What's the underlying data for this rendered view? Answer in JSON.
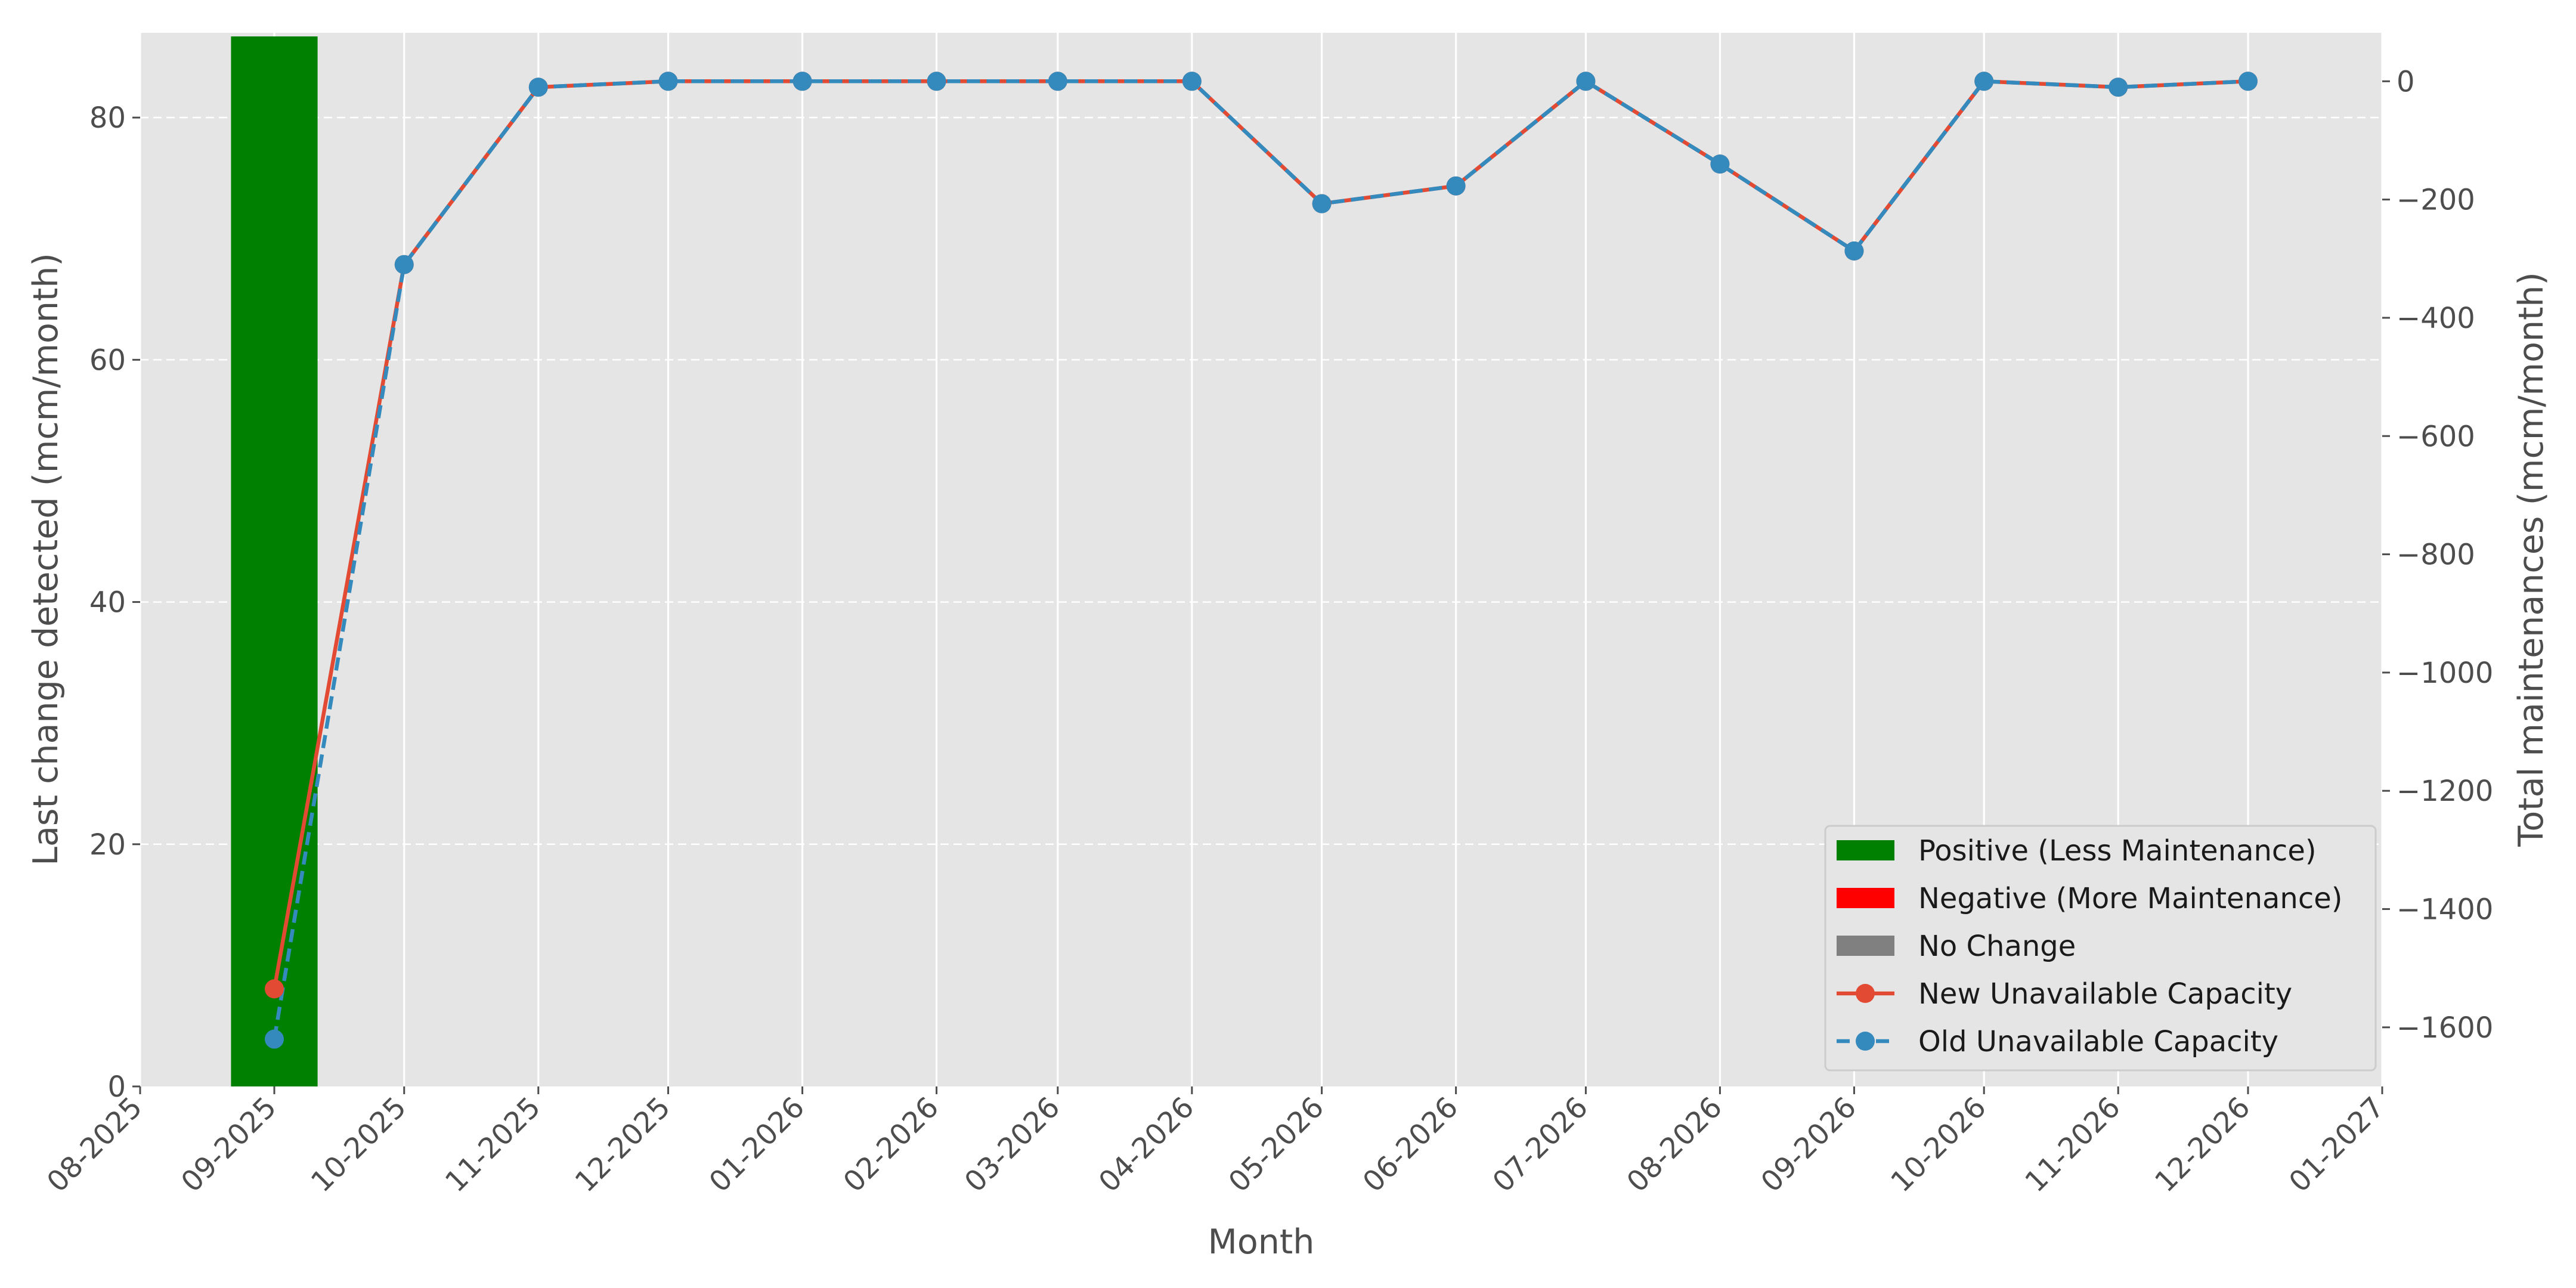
{
  "chart_data": {
    "type": "bar+line",
    "title": "",
    "xlabel": "Month",
    "ylabel_left": "Last change detected (mcm/month)",
    "ylabel_right": "Total maintenances (mcm/month)",
    "x_ticks": [
      "08-2025",
      "09-2025",
      "10-2025",
      "11-2025",
      "12-2025",
      "01-2026",
      "02-2026",
      "03-2026",
      "04-2026",
      "05-2026",
      "06-2026",
      "07-2026",
      "08-2026",
      "09-2026",
      "10-2026",
      "11-2026",
      "12-2026",
      "01-2027"
    ],
    "xlim": [
      "2025-08-01",
      "2027-01-01"
    ],
    "ylim_left": [
      0,
      87
    ],
    "yticks_left": [
      0,
      20,
      40,
      60,
      80
    ],
    "ylim_right": [
      -1700,
      82
    ],
    "yticks_right": [
      0,
      -200,
      -400,
      -600,
      -800,
      -1000,
      -1200,
      -1400,
      -1600
    ],
    "ytick_labels_right": [
      "0",
      "−200",
      "−400",
      "−600",
      "−800",
      "−1000",
      "−1200",
      "−1400",
      "−1600"
    ],
    "grid": true,
    "legend_position": "lower-right",
    "bars": [
      {
        "date": "2025-09-01",
        "value": 86.7,
        "category": "Positive (Less Maintenance)"
      }
    ],
    "bar_categories": [
      {
        "name": "Positive (Less Maintenance)",
        "color": "#008000"
      },
      {
        "name": "Negative (More Maintenance)",
        "color": "#ff0000"
      },
      {
        "name": "No Change",
        "color": "#808080"
      }
    ],
    "series": [
      {
        "name": "New Unavailable Capacity",
        "color": "#e24a33",
        "linestyle": "solid",
        "axis": "right",
        "points": [
          {
            "date": "2025-09-01",
            "value": -1535
          },
          {
            "date": "2025-10-01",
            "value": -310
          },
          {
            "date": "2025-11-01",
            "value": -10
          },
          {
            "date": "2025-12-01",
            "value": 0
          },
          {
            "date": "2026-01-01",
            "value": 0
          },
          {
            "date": "2026-02-01",
            "value": 0
          },
          {
            "date": "2026-03-01",
            "value": 0
          },
          {
            "date": "2026-04-01",
            "value": 0
          },
          {
            "date": "2026-05-01",
            "value": -207
          },
          {
            "date": "2026-06-01",
            "value": -177
          },
          {
            "date": "2026-07-01",
            "value": 0
          },
          {
            "date": "2026-08-01",
            "value": -140
          },
          {
            "date": "2026-09-01",
            "value": -287
          },
          {
            "date": "2026-10-01",
            "value": 0
          },
          {
            "date": "2026-11-01",
            "value": -10
          },
          {
            "date": "2026-12-01",
            "value": 0
          }
        ]
      },
      {
        "name": "Old Unavailable Capacity",
        "color": "#348abd",
        "linestyle": "dashed",
        "axis": "right",
        "points": [
          {
            "date": "2025-09-01",
            "value": -1620
          },
          {
            "date": "2025-10-01",
            "value": -310
          },
          {
            "date": "2025-11-01",
            "value": -10
          },
          {
            "date": "2025-12-01",
            "value": 0
          },
          {
            "date": "2026-01-01",
            "value": 0
          },
          {
            "date": "2026-02-01",
            "value": 0
          },
          {
            "date": "2026-03-01",
            "value": 0
          },
          {
            "date": "2026-04-01",
            "value": 0
          },
          {
            "date": "2026-05-01",
            "value": -207
          },
          {
            "date": "2026-06-01",
            "value": -177
          },
          {
            "date": "2026-07-01",
            "value": 0
          },
          {
            "date": "2026-08-01",
            "value": -140
          },
          {
            "date": "2026-09-01",
            "value": -287
          },
          {
            "date": "2026-10-01",
            "value": 0
          },
          {
            "date": "2026-11-01",
            "value": -10
          },
          {
            "date": "2026-12-01",
            "value": 0
          }
        ]
      }
    ],
    "legend": [
      {
        "label": "Positive (Less Maintenance)",
        "kind": "patch",
        "color": "#008000"
      },
      {
        "label": "Negative (More Maintenance)",
        "kind": "patch",
        "color": "#ff0000"
      },
      {
        "label": "No Change",
        "kind": "patch",
        "color": "#808080"
      },
      {
        "label": "New Unavailable Capacity",
        "kind": "line",
        "color": "#e24a33",
        "linestyle": "solid"
      },
      {
        "label": "Old Unavailable Capacity",
        "kind": "line",
        "color": "#348abd",
        "linestyle": "dashed"
      }
    ],
    "colors": {
      "plot_background": "#e5e5e5",
      "grid": "#ffffff",
      "tick": "#4d4d4d"
    }
  }
}
